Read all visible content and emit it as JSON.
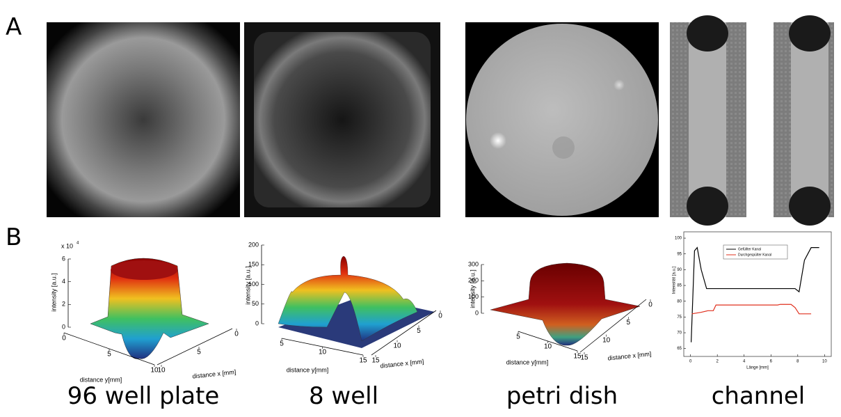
{
  "panels": [
    {
      "label": "A"
    },
    {
      "label": "B"
    }
  ],
  "captions": [
    "96 well plate",
    "8 well",
    "petri dish",
    "channel"
  ],
  "plots": [
    {
      "zlabel": "intensity [a.u.]",
      "zexponent": {
        "base": "x 10",
        "power": "4"
      },
      "zticks": [
        0,
        2,
        4,
        6
      ],
      "ylabel": "distance y[mm]",
      "yticks": [
        0,
        5,
        10
      ],
      "xlabel": "distance x [mm]",
      "xticks": [
        10,
        5,
        0
      ]
    },
    {
      "zlabel": "intensity [a.u.]",
      "zticks": [
        0,
        50,
        100,
        150,
        200
      ],
      "ylabel": "distance y[mm]",
      "yticks": [
        5,
        10,
        15
      ],
      "xlabel": "distance x [mm]",
      "xticks": [
        15,
        10,
        5,
        0
      ]
    },
    {
      "zlabel": "intensity [a.u.]",
      "zticks": [
        0,
        100,
        200,
        300
      ],
      "ylabel": "distance y[mm]",
      "yticks": [
        5,
        10,
        15
      ],
      "xlabel": "distance x [mm]",
      "xticks": [
        15,
        10,
        5,
        0
      ]
    }
  ],
  "chart_data": {
    "type": "line",
    "xlabel": "Länge [mm]",
    "ylabel": "Intensität [a.u.]",
    "xlim": [
      -0.5,
      10.5
    ],
    "ylim": [
      62.5,
      102
    ],
    "xticks": [
      0,
      2,
      4,
      6,
      8,
      10
    ],
    "yticks": [
      65,
      70,
      75,
      80,
      85,
      90,
      95,
      100
    ],
    "series": [
      {
        "name": "Gefüllter Kanal",
        "color": "#000000",
        "x": [
          0.05,
          0.3,
          0.5,
          0.8,
          1.2,
          1.5,
          7.5,
          7.8,
          8.1,
          8.5,
          9,
          9.6
        ],
        "values": [
          67,
          96,
          97,
          90,
          84,
          84,
          84,
          84,
          83,
          93,
          97,
          97
        ]
      },
      {
        "name": "Durchgespülter Kanal",
        "color": "#e0301e",
        "x": [
          0.1,
          0.8,
          1.3,
          1.7,
          1.9,
          2.5,
          6.5,
          6.7,
          7.5,
          7.8,
          8.1,
          9
        ],
        "values": [
          76,
          76.5,
          77,
          77,
          78.8,
          78.8,
          78.8,
          79,
          79,
          78,
          76,
          76
        ]
      }
    ]
  }
}
